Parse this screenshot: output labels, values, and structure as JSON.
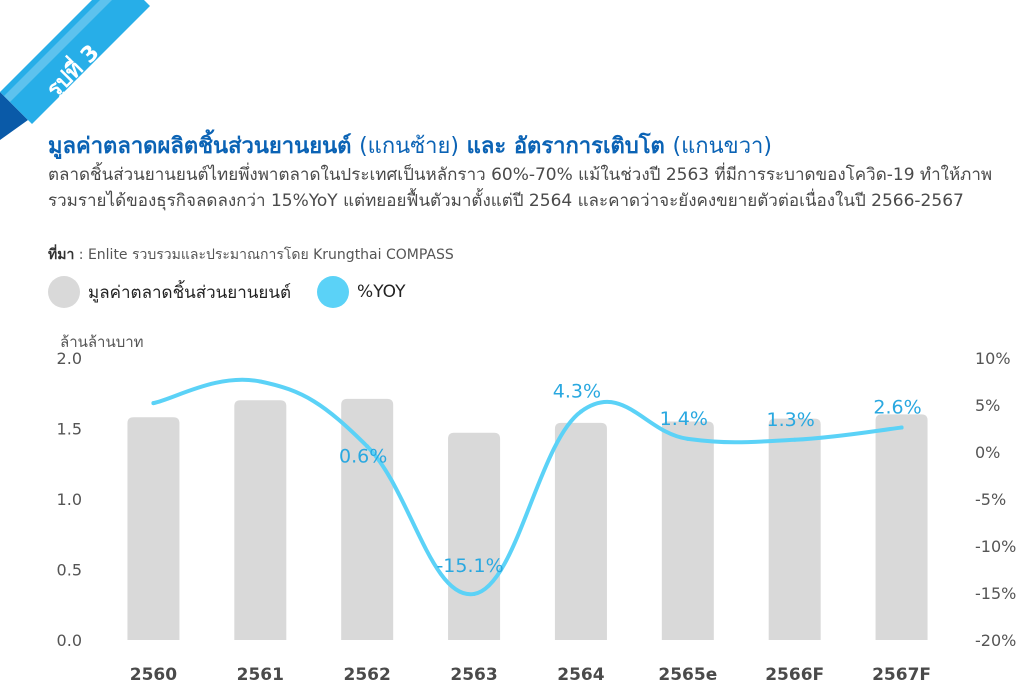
{
  "header": {
    "badge": "รูปที่ 3",
    "title_main": "มูลค่าตลาดผลิตชิ้นส่วนยานยนต์",
    "title_left_axis": "(แกนซ้าย)",
    "title_and": "และ",
    "title_secondary": "อัตราการเติบโต",
    "title_right_axis": "(แกนขวา)",
    "description": "ตลาดชิ้นส่วนยานยนต์ไทยพึ่งพาตลาดในประเทศเป็นหลักราว 60%-70% แม้ในช่วงปี 2563 ที่มีการระบาดของโควิด-19 ทำให้ภาพรวมรายได้ของธุรกิจลดลงกว่า 15%YoY แต่ทยอยฟื้นตัวมาตั้งแต่ปี 2564 และคาดว่าจะยังคงขยายตัวต่อเนื่องในปี 2566-2567",
    "source_label": "ที่มา",
    "source_text": " : Enlite รวบรวมและประมาณการโดย Krungthai COMPASS"
  },
  "colors": {
    "title": "#0b63b5",
    "bar": "#d9d9d9",
    "line": "#5bd2f7",
    "line_label": "#29a8e0",
    "ribbon_dark": "#0a5aa8",
    "ribbon_light": "#27aee8"
  },
  "chart_data": {
    "type": "bar",
    "categories": [
      "2560",
      "2561",
      "2562",
      "2563",
      "2564",
      "2565e",
      "2566F",
      "2567F"
    ],
    "series": [
      {
        "name": "มูลค่าตลาดชิ้นส่วนยานยนต์",
        "type": "bar",
        "axis": "left",
        "values": [
          1.58,
          1.7,
          1.71,
          1.47,
          1.54,
          1.55,
          1.57,
          1.6
        ]
      },
      {
        "name": "%YOY",
        "type": "line",
        "axis": "right",
        "values": [
          5.2,
          7.5,
          0.6,
          -15.1,
          4.3,
          1.4,
          1.3,
          2.6
        ],
        "data_labels": [
          "",
          "",
          "0.6%",
          "-15.1%",
          "4.3%",
          "1.4%",
          "1.3%",
          "2.6%"
        ]
      }
    ],
    "ylabel": "ล้านล้านบาท",
    "ylim": [
      0,
      2.0
    ],
    "yticks": [
      "0.0",
      "0.5",
      "1.0",
      "1.5",
      "2.0"
    ],
    "y2lim": [
      -20,
      10
    ],
    "y2ticks": [
      "-20%",
      "-15%",
      "-10%",
      "-5%",
      "0%",
      "5%",
      "10%"
    ],
    "legend_position": "top-left",
    "grid": false
  }
}
